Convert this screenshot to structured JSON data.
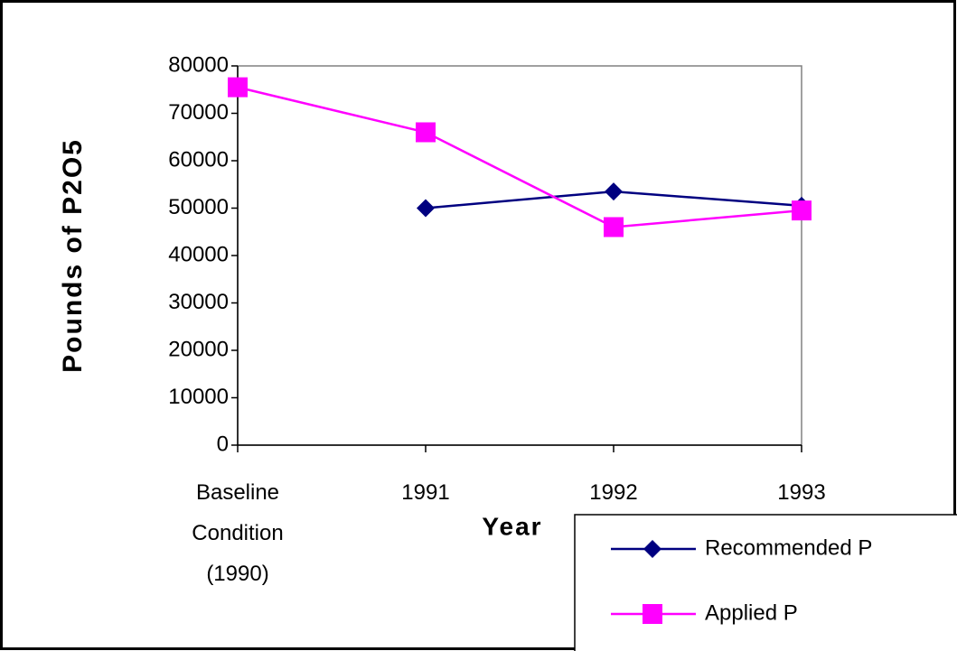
{
  "chart_data": {
    "type": "line",
    "x_label": "Year",
    "y_label": "Pounds of P2O5",
    "categories": [
      "Baseline Condition (1990)",
      "1991",
      "1992",
      "1993"
    ],
    "series": [
      {
        "name": "Recommended P",
        "color": "#000080",
        "marker": "diamond",
        "values": [
          null,
          50000,
          53500,
          50500
        ]
      },
      {
        "name": "Applied P",
        "color": "#ff00ff",
        "marker": "square",
        "values": [
          75500,
          66000,
          46000,
          49500
        ]
      }
    ],
    "ylim": [
      0,
      80000
    ],
    "yticks": [
      0,
      10000,
      20000,
      30000,
      40000,
      50000,
      60000,
      70000,
      80000
    ],
    "legend": "bottom-right"
  }
}
